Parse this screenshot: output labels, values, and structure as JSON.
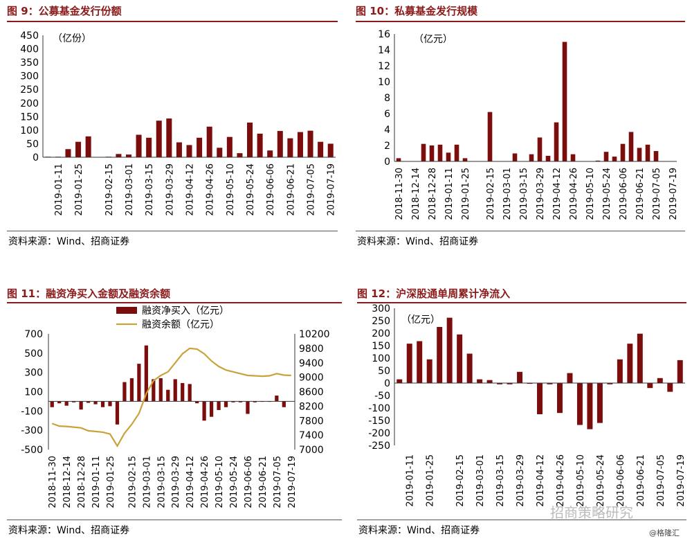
{
  "sources": {
    "c9": "资料来源：Wind、招商证券",
    "c10": "资料来源：Wind、招商证券",
    "c11": "资料来源：Wind、招商证券",
    "c12": "资料来源：Wind、招商证券"
  },
  "watermark": "招商策略研究",
  "credit": "@格隆汇",
  "colors": {
    "bar": "#7b0d0d",
    "line": "#c9a23a",
    "title": "#8b1a1a"
  },
  "chart_data": [
    {
      "id": "c9",
      "type": "bar",
      "title": "图 9：公募基金发行份额",
      "unit": "（亿份）",
      "ylim": [
        0,
        450
      ],
      "yticks": [
        0,
        50,
        100,
        150,
        200,
        250,
        300,
        350,
        400,
        450
      ],
      "categories": [
        "2019-01-04",
        "2019-01-11",
        "2019-01-18",
        "2019-01-25",
        "2019-02-01",
        "2019-02-08",
        "2019-02-15",
        "2019-02-22",
        "2019-03-01",
        "2019-03-08",
        "2019-03-15",
        "2019-03-22",
        "2019-03-29",
        "2019-04-05",
        "2019-04-12",
        "2019-04-19",
        "2019-04-26",
        "2019-05-03",
        "2019-05-10",
        "2019-05-17",
        "2019-05-24",
        "2019-05-31",
        "2019-06-06",
        "2019-06-14",
        "2019-06-21",
        "2019-06-28",
        "2019-07-05",
        "2019-07-12",
        "2019-07-19"
      ],
      "values": [
        2,
        2,
        30,
        57,
        77,
        0,
        2,
        12,
        10,
        83,
        72,
        135,
        143,
        55,
        45,
        72,
        113,
        35,
        75,
        15,
        128,
        87,
        25,
        97,
        70,
        93,
        98,
        57,
        50
      ],
      "xtick_labels": [
        "2019-01-11",
        "2019-01-25",
        "2019-02-15",
        "2019-03-01",
        "2019-03-15",
        "2019-03-29",
        "2019-04-12",
        "2019-04-26",
        "2019-05-10",
        "2019-05-24",
        "2019-06-06",
        "2019-06-21",
        "2019-07-05",
        "2019-07-19"
      ]
    },
    {
      "id": "c10",
      "type": "bar",
      "title": "图 10：私募基金发行规模",
      "unit": "（亿元）",
      "ylim": [
        0,
        16
      ],
      "yticks": [
        0,
        2,
        4,
        6,
        8,
        10,
        12,
        14,
        16
      ],
      "categories": [
        "2018-11-30",
        "2018-12-07",
        "2018-12-14",
        "2018-12-21",
        "2018-12-28",
        "2019-01-04",
        "2019-01-11",
        "2019-01-18",
        "2019-01-25",
        "2019-02-01",
        "2019-02-08",
        "2019-02-15",
        "2019-02-22",
        "2019-03-01",
        "2019-03-08",
        "2019-03-15",
        "2019-03-22",
        "2019-03-29",
        "2019-04-05",
        "2019-04-12",
        "2019-04-19",
        "2019-04-26",
        "2019-05-03",
        "2019-05-10",
        "2019-05-17",
        "2019-05-24",
        "2019-05-31",
        "2019-06-06",
        "2019-06-14",
        "2019-06-21",
        "2019-06-28",
        "2019-07-05",
        "2019-07-12",
        "2019-07-19"
      ],
      "values": [
        0.4,
        0,
        0,
        2.2,
        2.0,
        2.1,
        1.1,
        2.1,
        0.4,
        0,
        0,
        6.2,
        0,
        0,
        1.0,
        0,
        0.9,
        3.0,
        0.7,
        4.9,
        15.0,
        0.9,
        0,
        0,
        0.1,
        1.2,
        0.6,
        2.2,
        3.7,
        1.7,
        2.1,
        1.3,
        0,
        0
      ],
      "xtick_labels": [
        "2018-11-30",
        "2018-12-14",
        "2018-12-28",
        "2019-01-11",
        "2019-01-25",
        "2019-02-15",
        "2019-03-01",
        "2019-03-15",
        "2019-03-29",
        "2019-04-12",
        "2019-04-26",
        "2019-05-10",
        "2019-05-24",
        "2019-06-06",
        "2019-06-21",
        "2019-07-05",
        "2019-07-19"
      ]
    },
    {
      "id": "c11",
      "type": "bar+line",
      "title": "图 11：融资净买入金额及融资余额",
      "legend": [
        "融资净买入（亿元）",
        "融资余额（亿元）"
      ],
      "ylim": [
        -500,
        700
      ],
      "yticks": [
        -500,
        -300,
        -100,
        100,
        300,
        500,
        700
      ],
      "y2lim": [
        7000,
        10200
      ],
      "y2ticks": [
        7000,
        7400,
        7800,
        8200,
        8600,
        9000,
        9400,
        9800,
        10200
      ],
      "categories": [
        "2018-11-30",
        "2018-12-07",
        "2018-12-14",
        "2018-12-21",
        "2018-12-28",
        "2019-01-04",
        "2019-01-11",
        "2019-01-18",
        "2019-01-25",
        "2019-02-01",
        "2019-02-08",
        "2019-02-15",
        "2019-02-22",
        "2019-03-01",
        "2019-03-08",
        "2019-03-15",
        "2019-03-22",
        "2019-03-29",
        "2019-04-05",
        "2019-04-12",
        "2019-04-19",
        "2019-04-26",
        "2019-05-03",
        "2019-05-10",
        "2019-05-17",
        "2019-05-24",
        "2019-05-31",
        "2019-06-06",
        "2019-06-14",
        "2019-06-21",
        "2019-06-28",
        "2019-07-05",
        "2019-07-12",
        "2019-07-19"
      ],
      "bar_values": [
        -60,
        -20,
        -45,
        -10,
        -85,
        -15,
        -30,
        -60,
        -50,
        -240,
        200,
        240,
        390,
        580,
        230,
        240,
        120,
        230,
        190,
        180,
        -20,
        -200,
        -160,
        -90,
        -60,
        -10,
        -10,
        -130,
        -10,
        -5,
        -5,
        60,
        -60,
        0
      ],
      "line_values": [
        7720,
        7650,
        7640,
        7620,
        7600,
        7520,
        7500,
        7480,
        7430,
        7100,
        7450,
        7700,
        8000,
        8550,
        8900,
        9050,
        9150,
        9400,
        9650,
        9800,
        9780,
        9650,
        9450,
        9300,
        9200,
        9150,
        9100,
        9050,
        9040,
        9030,
        9040,
        9100,
        9060,
        9050
      ],
      "xtick_labels": [
        "2018-11-30",
        "2018-12-14",
        "2018-12-28",
        "2019-01-11",
        "2019-01-25",
        "2019-02-15",
        "2019-03-01",
        "2019-03-15",
        "2019-03-29",
        "2019-04-12",
        "2019-04-26",
        "2019-05-10",
        "2019-05-24",
        "2019-06-06",
        "2019-06-21",
        "2019-07-05",
        "2019-07-19"
      ]
    },
    {
      "id": "c12",
      "type": "bar",
      "title": "图 12：沪深股通单周累计净流入",
      "unit": "（亿元）",
      "ylim": [
        -250,
        300
      ],
      "yticks": [
        -250,
        -200,
        -150,
        -100,
        -50,
        0,
        50,
        100,
        150,
        200,
        250,
        300
      ],
      "categories": [
        "2019-01-04",
        "2019-01-11",
        "2019-01-18",
        "2019-01-25",
        "2019-02-01",
        "2019-02-08",
        "2019-02-15",
        "2019-02-22",
        "2019-03-01",
        "2019-03-08",
        "2019-03-15",
        "2019-03-22",
        "2019-03-29",
        "2019-04-05",
        "2019-04-12",
        "2019-04-19",
        "2019-04-26",
        "2019-05-03",
        "2019-05-10",
        "2019-05-17",
        "2019-05-24",
        "2019-05-31",
        "2019-06-06",
        "2019-06-14",
        "2019-06-21",
        "2019-06-28",
        "2019-07-05",
        "2019-07-12",
        "2019-07-19"
      ],
      "values": [
        15,
        158,
        168,
        95,
        225,
        262,
        195,
        118,
        15,
        12,
        -5,
        -5,
        45,
        -3,
        -125,
        -5,
        -120,
        40,
        -168,
        -185,
        -160,
        -5,
        95,
        158,
        198,
        -20,
        20,
        -35,
        92
      ],
      "xtick_labels": [
        "2019-01-11",
        "2019-01-25",
        "2019-02-15",
        "2019-03-01",
        "2019-03-15",
        "2019-03-29",
        "2019-04-12",
        "2019-04-26",
        "2019-05-10",
        "2019-05-24",
        "2019-06-06",
        "2019-06-21",
        "2019-07-05",
        "2019-07-19"
      ]
    }
  ]
}
